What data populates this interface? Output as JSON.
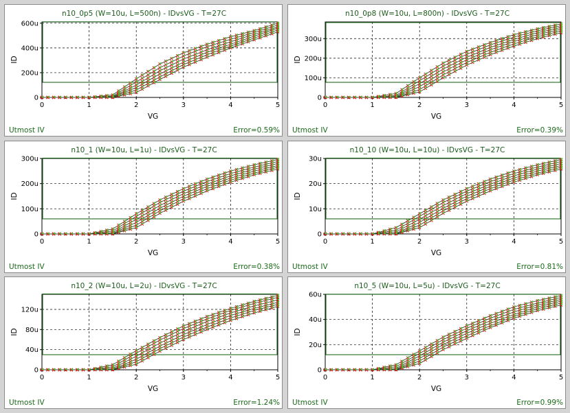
{
  "panels": [
    {
      "title": "n10_0p5 (W=10u, L=500n) - IDvsVG - T=27C",
      "xlabel": "VG",
      "ylabel": "ID",
      "xticks": [
        "0",
        "1",
        "2",
        "3",
        "4",
        "5"
      ],
      "yticks": [
        {
          "v": 0,
          "label": "0"
        },
        {
          "v": 200,
          "label": "200u"
        },
        {
          "v": 400,
          "label": "400u"
        },
        {
          "v": 600,
          "label": "600u"
        }
      ],
      "ymax": 610,
      "footer_left": "Utmost IV",
      "footer_right": "Error=0.59%"
    },
    {
      "title": "n10_0p8 (W=10u, L=800n) - IDvsVG - T=27C",
      "xlabel": "VG",
      "ylabel": "ID",
      "xticks": [
        "0",
        "1",
        "2",
        "3",
        "4",
        "5"
      ],
      "yticks": [
        {
          "v": 0,
          "label": "0"
        },
        {
          "v": 100,
          "label": "100u"
        },
        {
          "v": 200,
          "label": "200u"
        },
        {
          "v": 300,
          "label": "300u"
        }
      ],
      "ymax": 385,
      "footer_left": "Utmost IV",
      "footer_right": "Error=0.39%"
    },
    {
      "title": "n10_1 (W=10u, L=1u) - IDvsVG - T=27C",
      "xlabel": "VG",
      "ylabel": "ID",
      "xticks": [
        "0",
        "1",
        "2",
        "3",
        "4",
        "5"
      ],
      "yticks": [
        {
          "v": 0,
          "label": "0"
        },
        {
          "v": 100,
          "label": "100u"
        },
        {
          "v": 200,
          "label": "200u"
        },
        {
          "v": 300,
          "label": "300u"
        }
      ],
      "ymax": 300,
      "footer_left": "Utmost IV",
      "footer_right": "Error=0.38%"
    },
    {
      "title": "n10_10 (W=10u, L=10u) - IDvsVG - T=27C",
      "xlabel": "VG",
      "ylabel": "ID",
      "xticks": [
        "0",
        "1",
        "2",
        "3",
        "4",
        "5"
      ],
      "yticks": [
        {
          "v": 0,
          "label": "0"
        },
        {
          "v": 10,
          "label": "10u"
        },
        {
          "v": 20,
          "label": "20u"
        },
        {
          "v": 30,
          "label": "30u"
        }
      ],
      "ymax": 30,
      "footer_left": "Utmost IV",
      "footer_right": "Error=0.81%"
    },
    {
      "title": "n10_2 (W=10u, L=2u) - IDvsVG - T=27C",
      "xlabel": "VG",
      "ylabel": "ID",
      "xticks": [
        "0",
        "1",
        "2",
        "3",
        "4",
        "5"
      ],
      "yticks": [
        {
          "v": 0,
          "label": "0"
        },
        {
          "v": 40,
          "label": "40u"
        },
        {
          "v": 80,
          "label": "80u"
        },
        {
          "v": 120,
          "label": "120u"
        }
      ],
      "ymax": 150,
      "footer_left": "Utmost IV",
      "footer_right": "Error=1.24%"
    },
    {
      "title": "n10_5 (W=10u, L=5u) - IDvsVG - T=27C",
      "xlabel": "VG",
      "ylabel": "ID",
      "xticks": [
        "0",
        "1",
        "2",
        "3",
        "4",
        "5"
      ],
      "yticks": [
        {
          "v": 0,
          "label": "0"
        },
        {
          "v": 20,
          "label": "20u"
        },
        {
          "v": 40,
          "label": "40u"
        },
        {
          "v": 60,
          "label": "60u"
        }
      ],
      "ymax": 60,
      "footer_left": "Utmost IV",
      "footer_right": "Error=0.99%"
    }
  ],
  "chart_data": [
    {
      "type": "line",
      "title": "n10_0p5 (W=10u, L=500n) - IDvsVG - T=27C",
      "xlabel": "VG",
      "ylabel": "ID",
      "xlim": [
        0,
        5
      ],
      "ylim": [
        0,
        610
      ],
      "grid": true,
      "x": [
        0,
        0.5,
        1,
        1.5,
        2,
        2.5,
        3,
        3.5,
        4,
        4.5,
        5
      ],
      "series": [
        {
          "values": [
            0,
            0,
            0,
            20,
            150,
            270,
            360,
            430,
            490,
            540,
            600
          ]
        },
        {
          "values": [
            0,
            0,
            0,
            10,
            125,
            240,
            335,
            410,
            470,
            525,
            585
          ]
        },
        {
          "values": [
            0,
            0,
            0,
            5,
            100,
            215,
            310,
            385,
            450,
            510,
            570
          ]
        },
        {
          "values": [
            0,
            0,
            0,
            2,
            80,
            190,
            285,
            365,
            430,
            495,
            560
          ]
        },
        {
          "values": [
            0,
            0,
            0,
            0,
            60,
            165,
            265,
            345,
            415,
            480,
            545
          ]
        },
        {
          "values": [
            0,
            0,
            0,
            0,
            40,
            145,
            245,
            325,
            400,
            465,
            530
          ]
        }
      ]
    },
    {
      "type": "line",
      "title": "n10_0p8 (W=10u, L=800n) - IDvsVG - T=27C",
      "xlabel": "VG",
      "ylabel": "ID",
      "xlim": [
        0,
        5
      ],
      "ylim": [
        0,
        385
      ],
      "grid": true,
      "x": [
        0,
        0.5,
        1,
        1.5,
        2,
        2.5,
        3,
        3.5,
        4,
        4.5,
        5
      ],
      "series": [
        {
          "values": [
            0,
            0,
            0,
            20,
            100,
            175,
            235,
            280,
            320,
            350,
            375
          ]
        },
        {
          "values": [
            0,
            0,
            0,
            10,
            85,
            160,
            220,
            268,
            308,
            340,
            366
          ]
        },
        {
          "values": [
            0,
            0,
            0,
            5,
            70,
            145,
            205,
            255,
            296,
            330,
            357
          ]
        },
        {
          "values": [
            0,
            0,
            0,
            2,
            55,
            130,
            192,
            243,
            285,
            320,
            348
          ]
        },
        {
          "values": [
            0,
            0,
            0,
            0,
            40,
            115,
            178,
            230,
            273,
            310,
            339
          ]
        },
        {
          "values": [
            0,
            0,
            0,
            0,
            28,
            100,
            165,
            218,
            262,
            300,
            330
          ]
        }
      ]
    },
    {
      "type": "line",
      "title": "n10_1 (W=10u, L=1u) - IDvsVG - T=27C",
      "xlabel": "VG",
      "ylabel": "ID",
      "xlim": [
        0,
        5
      ],
      "ylim": [
        0,
        300
      ],
      "grid": true,
      "x": [
        0,
        0.5,
        1,
        1.5,
        2,
        2.5,
        3,
        3.5,
        4,
        4.5,
        5
      ],
      "series": [
        {
          "values": [
            0,
            0,
            0,
            20,
            80,
            135,
            180,
            218,
            250,
            275,
            296
          ]
        },
        {
          "values": [
            0,
            0,
            0,
            12,
            70,
            125,
            170,
            208,
            240,
            266,
            288
          ]
        },
        {
          "values": [
            0,
            0,
            0,
            6,
            58,
            113,
            160,
            198,
            231,
            258,
            280
          ]
        },
        {
          "values": [
            0,
            0,
            0,
            2,
            46,
            102,
            150,
            189,
            222,
            250,
            272
          ]
        },
        {
          "values": [
            0,
            0,
            0,
            0,
            35,
            92,
            140,
            180,
            214,
            242,
            265
          ]
        },
        {
          "values": [
            0,
            0,
            0,
            0,
            25,
            82,
            130,
            171,
            206,
            235,
            258
          ]
        }
      ]
    },
    {
      "type": "line",
      "title": "n10_10 (W=10u, L=10u) - IDvsVG - T=27C",
      "xlabel": "VG",
      "ylabel": "ID",
      "xlim": [
        0,
        5
      ],
      "ylim": [
        0,
        30
      ],
      "grid": true,
      "x": [
        0,
        0.5,
        1,
        1.5,
        2,
        2.5,
        3,
        3.5,
        4,
        4.5,
        5
      ],
      "series": [
        {
          "values": [
            0,
            0,
            0,
            2.5,
            8,
            13.5,
            18,
            21.8,
            25,
            27.5,
            29.6
          ]
        },
        {
          "values": [
            0,
            0,
            0,
            1.5,
            7,
            12.5,
            17,
            20.8,
            24,
            26.6,
            28.8
          ]
        },
        {
          "values": [
            0,
            0,
            0,
            0.8,
            5.8,
            11.3,
            16,
            19.8,
            23.1,
            25.8,
            28
          ]
        },
        {
          "values": [
            0,
            0,
            0,
            0.2,
            4.6,
            10.2,
            15,
            18.9,
            22.2,
            25,
            27.2
          ]
        },
        {
          "values": [
            0,
            0,
            0,
            0,
            3.5,
            9.2,
            14,
            18,
            21.4,
            24.2,
            26.5
          ]
        },
        {
          "values": [
            0,
            0,
            0,
            0,
            2.5,
            8.2,
            13,
            17.1,
            20.6,
            23.5,
            25.8
          ]
        }
      ]
    },
    {
      "type": "line",
      "title": "n10_2 (W=10u, L=2u) - IDvsVG - T=27C",
      "xlabel": "VG",
      "ylabel": "ID",
      "xlim": [
        0,
        5
      ],
      "ylim": [
        0,
        150
      ],
      "grid": true,
      "x": [
        0,
        0.5,
        1,
        1.5,
        2,
        2.5,
        3,
        3.5,
        4,
        4.5,
        5
      ],
      "series": [
        {
          "values": [
            0,
            0,
            0,
            10,
            38,
            64,
            87,
            106,
            122,
            136,
            148
          ]
        },
        {
          "values": [
            0,
            0,
            0,
            6,
            33,
            59,
            82,
            101,
            118,
            132,
            144
          ]
        },
        {
          "values": [
            0,
            0,
            0,
            3,
            27,
            53,
            76,
            96,
            113,
            127,
            139
          ]
        },
        {
          "values": [
            0,
            0,
            0,
            1,
            21,
            47,
            70,
            90,
            108,
            122,
            134
          ]
        },
        {
          "values": [
            0,
            0,
            0,
            0,
            16,
            42,
            65,
            85,
            103,
            118,
            130
          ]
        },
        {
          "values": [
            0,
            0,
            0,
            0,
            11,
            37,
            60,
            80,
            98,
            113,
            126
          ]
        }
      ]
    },
    {
      "type": "line",
      "title": "n10_5 (W=10u, L=5u) - IDvsVG - T=27C",
      "xlabel": "VG",
      "ylabel": "ID",
      "xlim": [
        0,
        5
      ],
      "ylim": [
        0,
        60
      ],
      "grid": true,
      "x": [
        0,
        0.5,
        1,
        1.5,
        2,
        2.5,
        3,
        3.5,
        4,
        4.5,
        5
      ],
      "series": [
        {
          "values": [
            0,
            0,
            0,
            4,
            15,
            26,
            35,
            43,
            50,
            55,
            59
          ]
        },
        {
          "values": [
            0,
            0,
            0,
            2.5,
            13,
            24,
            33,
            41,
            48,
            53,
            57.5
          ]
        },
        {
          "values": [
            0,
            0,
            0,
            1.2,
            11,
            22,
            31,
            39,
            46,
            51.5,
            56
          ]
        },
        {
          "values": [
            0,
            0,
            0,
            0.4,
            9,
            20,
            29,
            37,
            44,
            50,
            54.5
          ]
        },
        {
          "values": [
            0,
            0,
            0,
            0,
            7,
            18,
            27,
            35,
            42.5,
            48.5,
            53
          ]
        },
        {
          "values": [
            0,
            0,
            0,
            0,
            5,
            16,
            25,
            33.5,
            41,
            47,
            51.5
          ]
        }
      ]
    }
  ]
}
